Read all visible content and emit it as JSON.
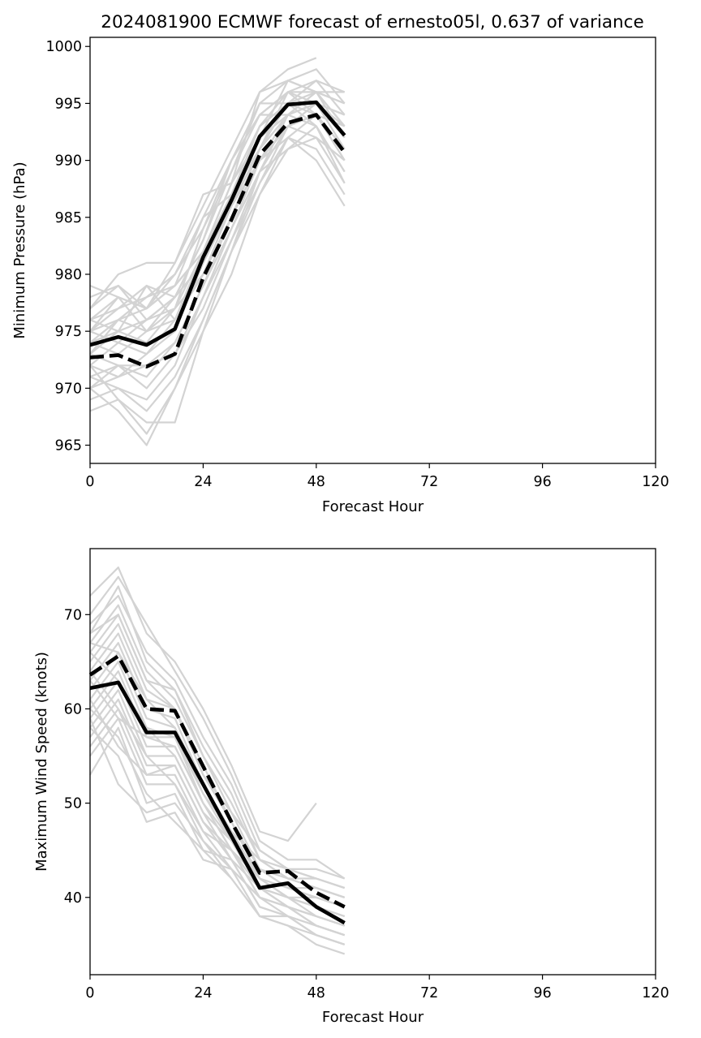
{
  "title": "2024081900 ECMWF forecast of ernesto05l, 0.637 of variance",
  "colors": {
    "ensemble": "#d3d3d3",
    "mean": "#000000",
    "background": "#ffffff"
  },
  "chart_data": [
    {
      "type": "line",
      "xlabel": "Forecast Hour",
      "ylabel": "Minimum Pressure (hPa)",
      "xlim": [
        0,
        120
      ],
      "ylim": [
        963.4,
        1000.8
      ],
      "xticks": [
        0,
        24,
        48,
        72,
        96,
        120
      ],
      "yticks": [
        965,
        970,
        975,
        980,
        985,
        990,
        995,
        1000
      ],
      "grid": false,
      "x": [
        0,
        6,
        12,
        18,
        24,
        30,
        36,
        42,
        48,
        54
      ],
      "series": [
        {
          "style": "solid",
          "values": [
            973.8,
            974.5,
            973.8,
            975.2,
            981.5,
            986.5,
            992.1,
            994.9,
            995.1,
            992.2
          ]
        },
        {
          "style": "dashed",
          "values": [
            972.7,
            972.9,
            971.9,
            973.0,
            979.7,
            984.8,
            990.5,
            993.3,
            994.0,
            990.7
          ]
        }
      ],
      "ensemble": [
        [
          979,
          978,
          977,
          981,
          987,
          988,
          996,
          998,
          999,
          null
        ],
        [
          978,
          979,
          977,
          979,
          985,
          990,
          995,
          997,
          996,
          996
        ],
        [
          977,
          980,
          981,
          981,
          986,
          991,
          996,
          997,
          998,
          995
        ],
        [
          976,
          975,
          979,
          978,
          983,
          990,
          994,
          996,
          997,
          994
        ],
        [
          975,
          978,
          977,
          980,
          984,
          989,
          994,
          996,
          996,
          993
        ],
        [
          976,
          977,
          979,
          976,
          982,
          988,
          993,
          995,
          997,
          996
        ],
        [
          975,
          976,
          978,
          980,
          985,
          987,
          993,
          996,
          995,
          992
        ],
        [
          977,
          979,
          976,
          978,
          983,
          989,
          995,
          995,
          994,
          991
        ],
        [
          974,
          976,
          977,
          979,
          982,
          988,
          992,
          997,
          996,
          993
        ],
        [
          976,
          978,
          975,
          977,
          984,
          990,
          994,
          994,
          995,
          994
        ],
        [
          975,
          974,
          976,
          978,
          981,
          986,
          991,
          994,
          996,
          995
        ],
        [
          973,
          975,
          974,
          977,
          982,
          987,
          993,
          995,
          996,
          992
        ],
        [
          974,
          973,
          975,
          976,
          980,
          985,
          991,
          996,
          994,
          991
        ],
        [
          972,
          974,
          973,
          975,
          981,
          986,
          992,
          994,
          995,
          993
        ],
        [
          973,
          972,
          972,
          974,
          979,
          985,
          990,
          993,
          994,
          990
        ],
        [
          971,
          972,
          970,
          973,
          978,
          984,
          989,
          993,
          995,
          991
        ],
        [
          972,
          971,
          973,
          976,
          980,
          986,
          991,
          995,
          993,
          989
        ],
        [
          970,
          972,
          971,
          974,
          979,
          984,
          990,
          992,
          994,
          990
        ],
        [
          971,
          970,
          969,
          972,
          978,
          983,
          989,
          994,
          993,
          988
        ],
        [
          970,
          971,
          972,
          973,
          977,
          983,
          988,
          992,
          991,
          987
        ],
        [
          969,
          970,
          968,
          971,
          976,
          982,
          987,
          991,
          993,
          989
        ],
        [
          968,
          969,
          966,
          970,
          975,
          980,
          987,
          992,
          990,
          986
        ],
        [
          970,
          968,
          965,
          970,
          976,
          982,
          988,
          993,
          992,
          988
        ],
        [
          972,
          969,
          967,
          967,
          975,
          982,
          989,
          991,
          992,
          990
        ],
        [
          974,
          975,
          976,
          977,
          980,
          985,
          990,
          994,
          995,
          994
        ],
        [
          975,
          977,
          978,
          979,
          982,
          987,
          991,
          994,
          996,
          995
        ],
        [
          973,
          976,
          975,
          978,
          981,
          986,
          990,
          993,
          994,
          993
        ]
      ]
    },
    {
      "type": "line",
      "xlabel": "Forecast Hour",
      "ylabel": "Maximum Wind Speed (knots)",
      "xlim": [
        0,
        120
      ],
      "ylim": [
        31.8,
        77
      ],
      "xticks": [
        0,
        24,
        48,
        72,
        96,
        120
      ],
      "yticks": [
        40,
        50,
        60,
        70
      ],
      "grid": false,
      "x": [
        0,
        6,
        12,
        18,
        24,
        30,
        36,
        42,
        48,
        54
      ],
      "series": [
        {
          "style": "solid",
          "values": [
            62.2,
            62.8,
            57.5,
            57.5,
            52.0,
            46.5,
            41.0,
            41.5,
            39.0,
            37.3
          ]
        },
        {
          "style": "dashed",
          "values": [
            63.6,
            65.6,
            60.0,
            59.8,
            53.9,
            48.0,
            42.6,
            42.8,
            40.5,
            39.0
          ]
        }
      ],
      "ensemble": [
        [
          72,
          75,
          68,
          65,
          60,
          54,
          47,
          46,
          50,
          null
        ],
        [
          70,
          74,
          69,
          64,
          59,
          53,
          46,
          44,
          44,
          42
        ],
        [
          69,
          72,
          66,
          63,
          57,
          52,
          45,
          43,
          43,
          42
        ],
        [
          68,
          73,
          65,
          62,
          56,
          51,
          44,
          43,
          42,
          41
        ],
        [
          67,
          71,
          64,
          61,
          55,
          50,
          44,
          42,
          42,
          41
        ],
        [
          66,
          70,
          63,
          62,
          55,
          49,
          43,
          42,
          41,
          40
        ],
        [
          65,
          69,
          62,
          60,
          54,
          48,
          43,
          41,
          41,
          40
        ],
        [
          64,
          68,
          61,
          60,
          53,
          48,
          42,
          41,
          40,
          39
        ],
        [
          63,
          67,
          60,
          59,
          52,
          47,
          42,
          40,
          40,
          39
        ],
        [
          62,
          66,
          59,
          58,
          52,
          46,
          41,
          40,
          39,
          38
        ],
        [
          61,
          65,
          58,
          57,
          51,
          46,
          41,
          40,
          39,
          38
        ],
        [
          60,
          64,
          57,
          57,
          50,
          45,
          40,
          39,
          38,
          37
        ],
        [
          59,
          63,
          56,
          56,
          50,
          45,
          40,
          39,
          38,
          37
        ],
        [
          58,
          62,
          55,
          55,
          49,
          44,
          39,
          38,
          37,
          36
        ],
        [
          57,
          61,
          54,
          54,
          48,
          44,
          39,
          38,
          37,
          36
        ],
        [
          56,
          60,
          53,
          53,
          47,
          43,
          38,
          38,
          36,
          35
        ],
        [
          55,
          59,
          52,
          52,
          46,
          42,
          38,
          37,
          36,
          35
        ],
        [
          53,
          58,
          50,
          51,
          45,
          42,
          38,
          37,
          35,
          34
        ],
        [
          58,
          55,
          48,
          49,
          44,
          43,
          40,
          39,
          37,
          36
        ],
        [
          60,
          57,
          51,
          48,
          45,
          44,
          41,
          39,
          38,
          37
        ],
        [
          64,
          60,
          55,
          52,
          47,
          45,
          42,
          40,
          39,
          38
        ],
        [
          66,
          63,
          58,
          55,
          49,
          46,
          43,
          41,
          40,
          39
        ],
        [
          67,
          66,
          61,
          58,
          51,
          47,
          44,
          42,
          41,
          40
        ],
        [
          68,
          70,
          63,
          60,
          53,
          49,
          45,
          43,
          42,
          41
        ],
        [
          59,
          52,
          49,
          50,
          46,
          43,
          40,
          38,
          36,
          35
        ],
        [
          61,
          56,
          53,
          54,
          48,
          45,
          41,
          39,
          37,
          36
        ],
        [
          63,
          59,
          57,
          56,
          50,
          46,
          42,
          40,
          38,
          37
        ]
      ]
    }
  ]
}
